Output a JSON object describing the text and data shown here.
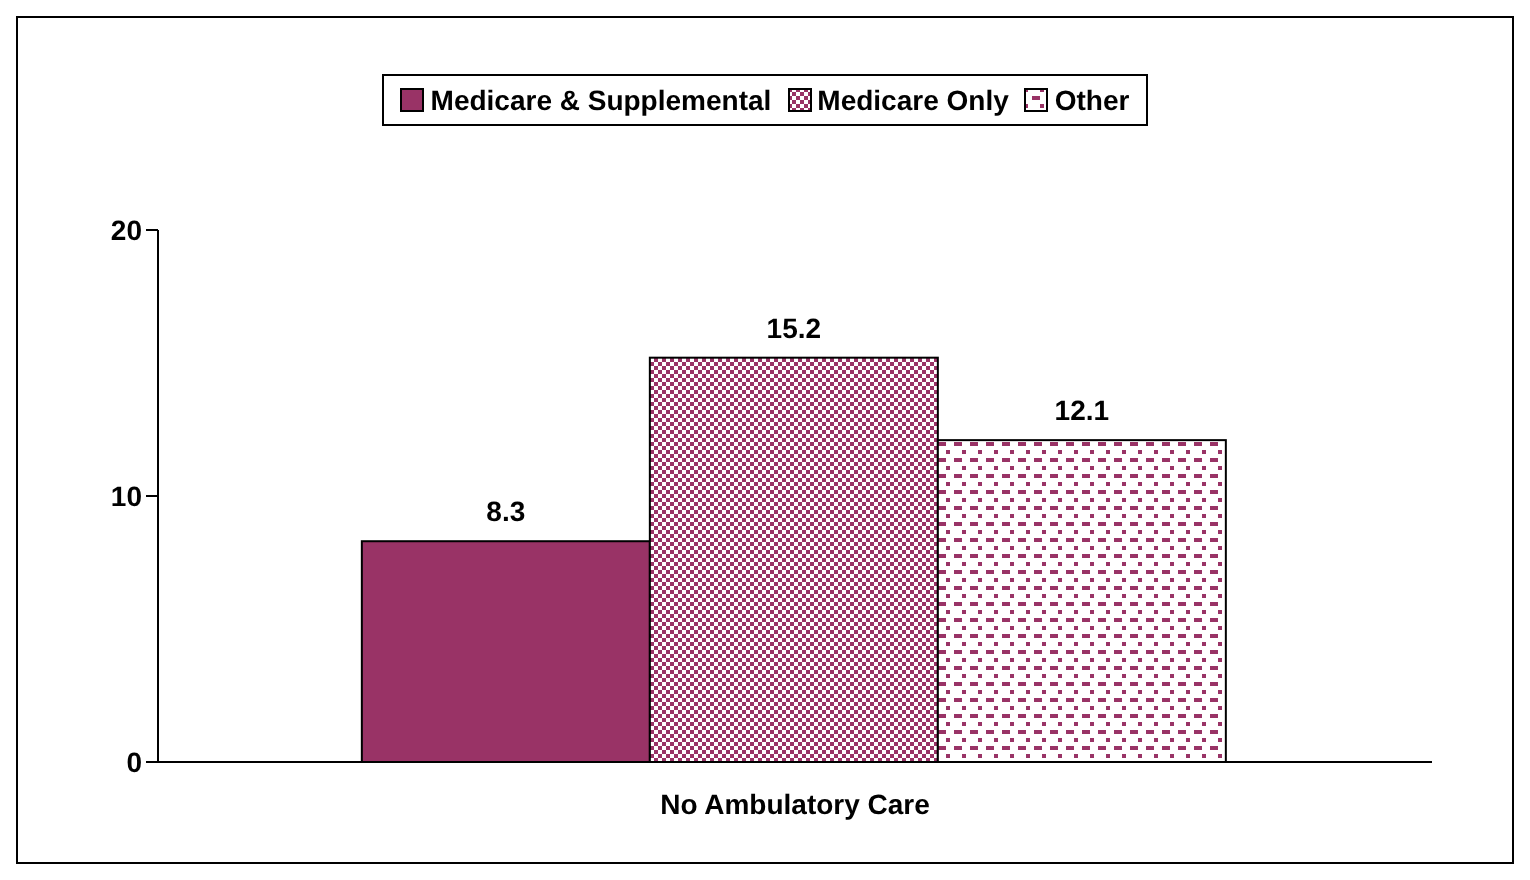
{
  "chart_data": {
    "type": "bar",
    "categories": [
      "No Ambulatory Care"
    ],
    "series": [
      {
        "name": "Medicare & Supplemental",
        "color": "#993366",
        "values": [
          8.3
        ]
      },
      {
        "name": "Medicare Only",
        "color": "#993366",
        "values": [
          15.2
        ]
      },
      {
        "name": "Other",
        "color": "#993366",
        "values": [
          12.1
        ]
      }
    ],
    "ylim": [
      0,
      20
    ],
    "yticks": [
      0,
      10,
      20
    ],
    "grid": false,
    "legend": "top",
    "data_labels": true
  }
}
